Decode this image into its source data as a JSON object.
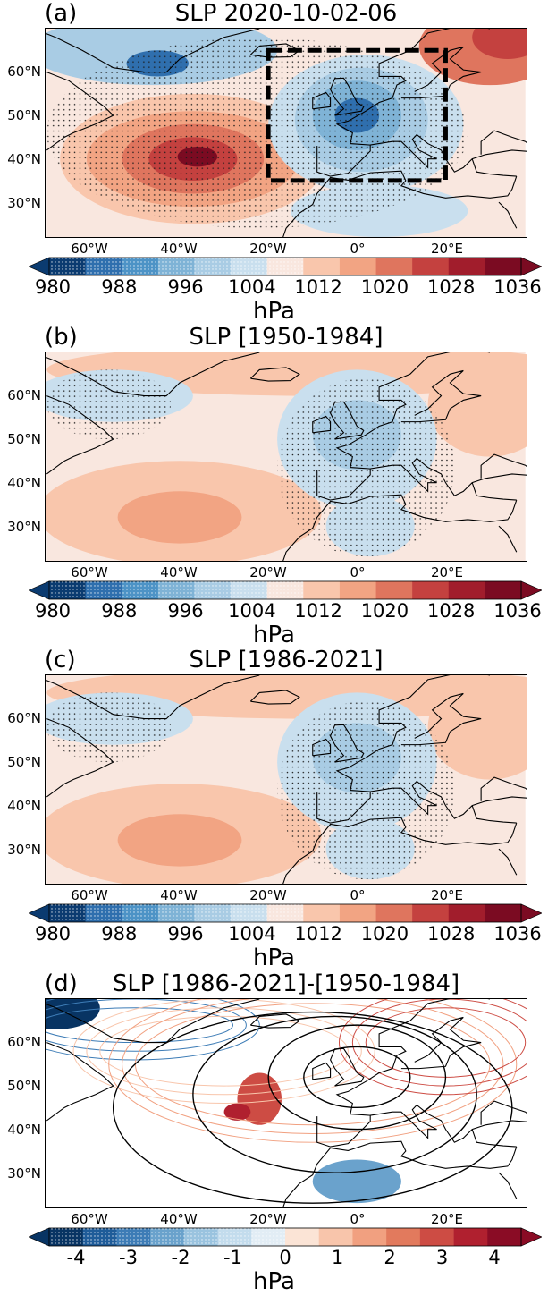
{
  "panels": [
    {
      "letter": "(a)",
      "title": "SLP 2020-10-02-06",
      "type": "absolute"
    },
    {
      "letter": "(b)",
      "title": "SLP [1950-1984]",
      "type": "absolute"
    },
    {
      "letter": "(c)",
      "title": "SLP [1986-2021]",
      "type": "absolute"
    },
    {
      "letter": "(d)",
      "title": "SLP [1986-2021]-[1950-1984]",
      "type": "difference"
    }
  ],
  "lat_labels": [
    "60°N",
    "50°N",
    "40°N",
    "30°N"
  ],
  "lon_labels": [
    "60°W",
    "40°W",
    "20°W",
    "0°",
    "20°E"
  ],
  "colorbar_abs_ticks": [
    "980",
    "988",
    "996",
    "1004",
    "1012",
    "1020",
    "1028",
    "1036"
  ],
  "colorbar_diff_ticks": [
    "-4",
    "-3",
    "-2",
    "-1",
    "0",
    "1",
    "2",
    "3",
    "4"
  ],
  "colorbar_unit": "hPa",
  "chart_data": [
    {
      "type": "heatmap",
      "title": "SLP 2020-10-02-06",
      "xlim": [
        -70,
        38
      ],
      "ylim": [
        22,
        70
      ],
      "colorbar": {
        "min": 980,
        "max": 1036,
        "step": 4,
        "label": "hPa",
        "extend": "both"
      },
      "features": [
        {
          "kind": "low",
          "center": [
            0,
            50
          ],
          "value": 984
        },
        {
          "kind": "low",
          "center": [
            -45,
            62
          ],
          "value": 988
        },
        {
          "kind": "high",
          "center": [
            -37,
            40
          ],
          "value": 1034
        },
        {
          "kind": "high",
          "center": [
            32,
            67
          ],
          "value": 1028
        }
      ],
      "annotation_box": {
        "lon": [
          -20,
          20
        ],
        "lat": [
          35,
          65
        ],
        "style": "dashed"
      }
    },
    {
      "type": "heatmap",
      "title": "SLP [1950-1984]",
      "xlim": [
        -70,
        38
      ],
      "ylim": [
        22,
        70
      ],
      "colorbar": {
        "min": 980,
        "max": 1036,
        "step": 4,
        "label": "hPa",
        "extend": "both"
      },
      "features": [
        {
          "kind": "low",
          "center": [
            0,
            52
          ],
          "value": 996
        },
        {
          "kind": "high",
          "center": [
            -40,
            32
          ],
          "value": 1022
        }
      ]
    },
    {
      "type": "heatmap",
      "title": "SLP [1986-2021]",
      "xlim": [
        -70,
        38
      ],
      "ylim": [
        22,
        70
      ],
      "colorbar": {
        "min": 980,
        "max": 1036,
        "step": 4,
        "label": "hPa",
        "extend": "both"
      },
      "features": [
        {
          "kind": "low",
          "center": [
            0,
            52
          ],
          "value": 996
        },
        {
          "kind": "high",
          "center": [
            -40,
            32
          ],
          "value": 1022
        }
      ]
    },
    {
      "type": "heatmap",
      "title": "SLP [1986-2021]-[1950-1984]",
      "xlim": [
        -70,
        38
      ],
      "ylim": [
        22,
        70
      ],
      "colorbar": {
        "min": -4.5,
        "max": 4.5,
        "step": 0.5,
        "label": "hPa",
        "extend": "both"
      },
      "features": [
        {
          "kind": "negative",
          "center": [
            -65,
            66
          ],
          "value": -4
        },
        {
          "kind": "positive",
          "center": [
            -22,
            46
          ],
          "value": 3
        },
        {
          "kind": "negative",
          "center": [
            0,
            27
          ],
          "value": -1.5
        },
        {
          "kind": "positive",
          "center": [
            22,
            62
          ],
          "value": 2
        }
      ]
    }
  ],
  "colors": {
    "diverging": [
      "#053061",
      "#2166ac",
      "#4393c3",
      "#92c5de",
      "#d1e5f0",
      "#f7f7f7",
      "#fddbc7",
      "#f4a582",
      "#d6604d",
      "#b2182b",
      "#67001f"
    ],
    "abs_palette": [
      "#0b3b70",
      "#2f6fae",
      "#4d93c6",
      "#7fb3d6",
      "#a9cce4",
      "#c9dfee",
      "#f9e7df",
      "#f9c6ac",
      "#f2a483",
      "#df755e",
      "#c4413f",
      "#a11d2c",
      "#7b0b22"
    ],
    "diff_palette": [
      "#083463",
      "#1f5c99",
      "#3d7cb6",
      "#6aa2cc",
      "#9ac3df",
      "#c3dced",
      "#e2edf5",
      "#fbe4d6",
      "#f8c5ab",
      "#f1a080",
      "#e27a5d",
      "#cd4c44",
      "#b0202f",
      "#8a0c25"
    ]
  }
}
